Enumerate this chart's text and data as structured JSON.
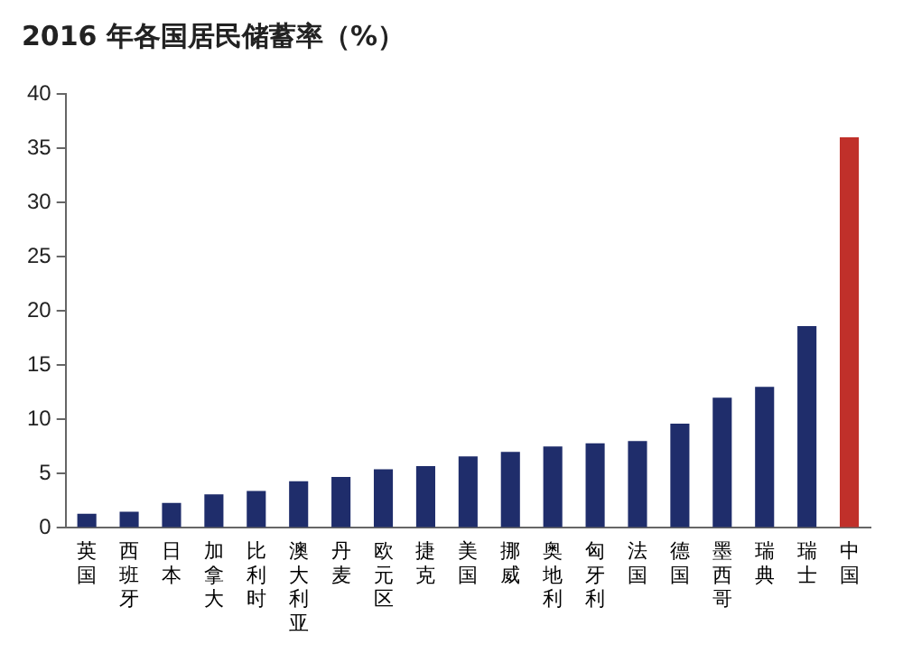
{
  "chart_data": {
    "type": "bar",
    "title": "2016 年各国居民储蓄率（%）",
    "categories": [
      "英国",
      "西班牙",
      "日本",
      "加拿大",
      "比利时",
      "澳大利亚",
      "丹麦",
      "欧元区",
      "捷克",
      "美国",
      "挪威",
      "奥地利",
      "匈牙利",
      "法国",
      "德国",
      "墨西哥",
      "瑞典",
      "瑞士",
      "中国"
    ],
    "values": [
      1.3,
      1.5,
      2.3,
      3.1,
      3.4,
      4.3,
      4.7,
      5.4,
      5.7,
      6.6,
      7.0,
      7.5,
      7.8,
      8.0,
      9.6,
      12,
      13,
      18.6,
      36.0
    ],
    "colors": [
      "#1f2d6b",
      "#1f2d6b",
      "#1f2d6b",
      "#1f2d6b",
      "#1f2d6b",
      "#1f2d6b",
      "#1f2d6b",
      "#1f2d6b",
      "#1f2d6b",
      "#1f2d6b",
      "#1f2d6b",
      "#1f2d6b",
      "#1f2d6b",
      "#1f2d6b",
      "#1f2d6b",
      "#1f2d6b",
      "#1f2d6b",
      "#1f2d6b",
      "#c0302a"
    ],
    "ylim": [
      0,
      40
    ],
    "yticks": [
      0,
      5,
      10,
      15,
      20,
      25,
      30,
      35,
      40
    ],
    "grid": false,
    "legend": false
  }
}
